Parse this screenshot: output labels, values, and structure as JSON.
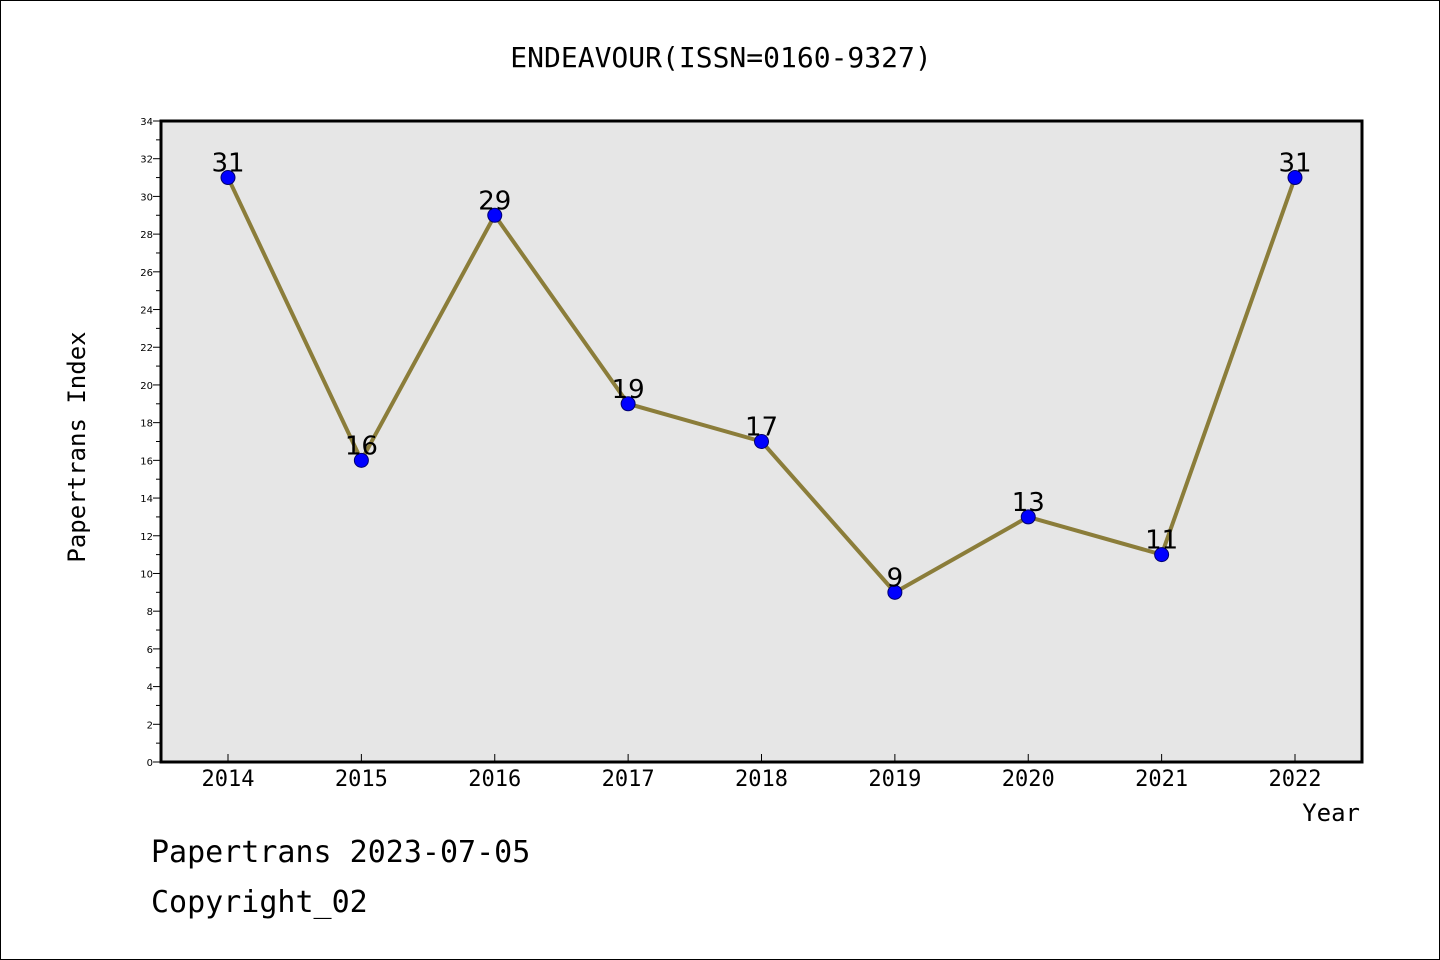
{
  "chart_data": {
    "type": "line",
    "title": "ENDEAVOUR(ISSN=0160-9327)",
    "xlabel": "Year",
    "ylabel": "Papertrans Index",
    "categories": [
      "2014",
      "2015",
      "2016",
      "2017",
      "2018",
      "2019",
      "2020",
      "2021",
      "2022"
    ],
    "series": [
      {
        "values": [
          31,
          16,
          29,
          19,
          17,
          9,
          13,
          11,
          31
        ]
      }
    ],
    "ylim": [
      0,
      34
    ],
    "y_ticks": [
      0,
      2,
      4,
      6,
      8,
      10,
      12,
      14,
      16,
      18,
      20,
      22,
      24,
      26,
      28,
      30,
      32,
      34
    ],
    "grid": false,
    "data_labels": true,
    "colors": {
      "plot_background": "#e6e6e6",
      "line": "#8b7d3a",
      "marker": "#0000ff",
      "marker_edge": "#00006e"
    }
  },
  "footer": {
    "line1": "Papertrans 2023-07-05",
    "line2": "Copyright_02"
  }
}
